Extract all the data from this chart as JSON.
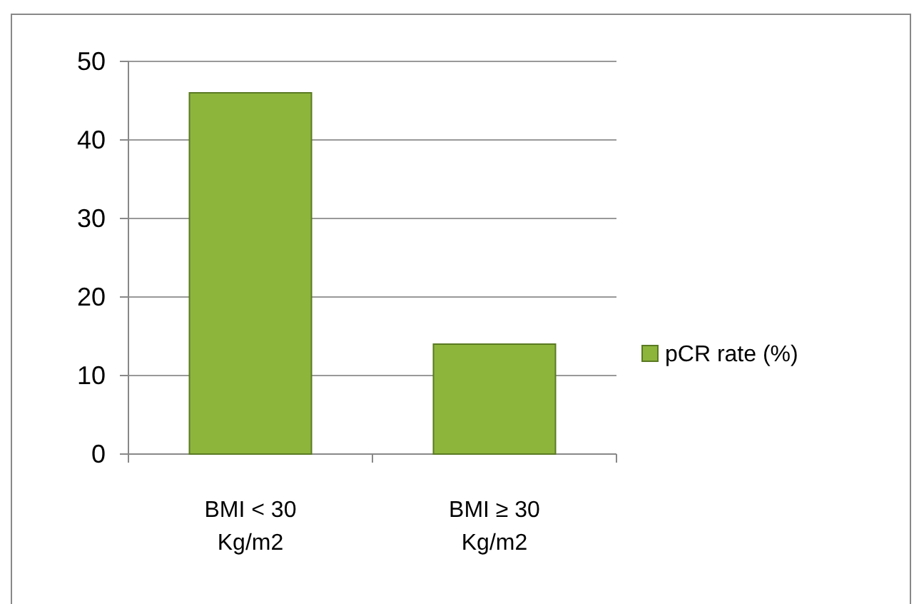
{
  "chart_data": {
    "type": "bar",
    "categories": [
      "BMI < 30 Kg/m2",
      "BMI ≥ 30 Kg/m2"
    ],
    "series": [
      {
        "name": "pCR rate (%)",
        "color": "#8db53c",
        "values": [
          46,
          14
        ]
      }
    ],
    "ylim": [
      0,
      50
    ],
    "yticks": [
      0,
      10,
      20,
      30,
      40,
      50
    ],
    "grid": "y",
    "legend": "right"
  }
}
